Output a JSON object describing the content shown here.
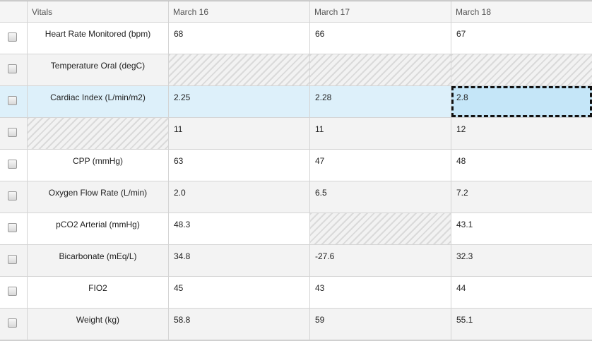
{
  "header": {
    "vitals": "Vitals",
    "dates": [
      "March 16",
      "March 17",
      "March 18"
    ]
  },
  "rows": [
    {
      "label": "Heart Rate Monitored (bpm)",
      "values": [
        "68",
        "66",
        "67"
      ]
    },
    {
      "label": "Temperature Oral (degC)",
      "values": [
        "",
        "",
        ""
      ]
    },
    {
      "label": "Cardiac Index (L/min/m2)",
      "values": [
        "2.25",
        "2.28",
        "2.8"
      ]
    },
    {
      "label": "",
      "values": [
        "11",
        "11",
        "12"
      ]
    },
    {
      "label": "CPP (mmHg)",
      "values": [
        "63",
        "47",
        "48"
      ]
    },
    {
      "label": "Oxygen Flow Rate (L/min)",
      "values": [
        "2.0",
        "6.5",
        "7.2"
      ]
    },
    {
      "label": "pCO2 Arterial (mmHg)",
      "values": [
        "48.3",
        "",
        "43.1"
      ]
    },
    {
      "label": "Bicarbonate (mEq/L)",
      "values": [
        "34.8",
        "-27.6",
        "32.3"
      ]
    },
    {
      "label": "FIO2",
      "values": [
        "45",
        "43",
        "44"
      ]
    },
    {
      "label": "Weight (kg)",
      "values": [
        "58.8",
        "59",
        "55.1"
      ]
    }
  ]
}
